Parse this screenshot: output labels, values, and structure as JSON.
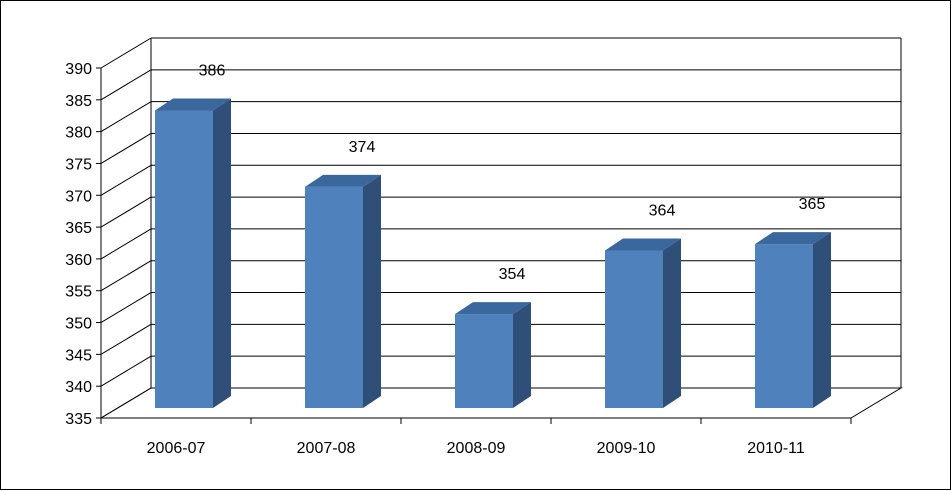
{
  "chart_data": {
    "type": "bar",
    "categories": [
      "2006-07",
      "2007-08",
      "2008-09",
      "2009-10",
      "2010-11"
    ],
    "values": [
      386,
      374,
      354,
      364,
      365
    ],
    "data_labels": [
      "386",
      "374",
      "354",
      "364",
      "365"
    ],
    "title": "",
    "xlabel": "",
    "ylabel": "",
    "ylim": [
      335,
      390
    ],
    "yticks": [
      335,
      340,
      345,
      350,
      355,
      360,
      365,
      370,
      375,
      380,
      385,
      390
    ],
    "grid": true,
    "legend": "none",
    "style": "3d-clustered-column",
    "colors": {
      "bar_front": "#4f81bd",
      "bar_side": "#2f4f78",
      "bar_top": "#3a679c",
      "grid": "#000000"
    }
  }
}
